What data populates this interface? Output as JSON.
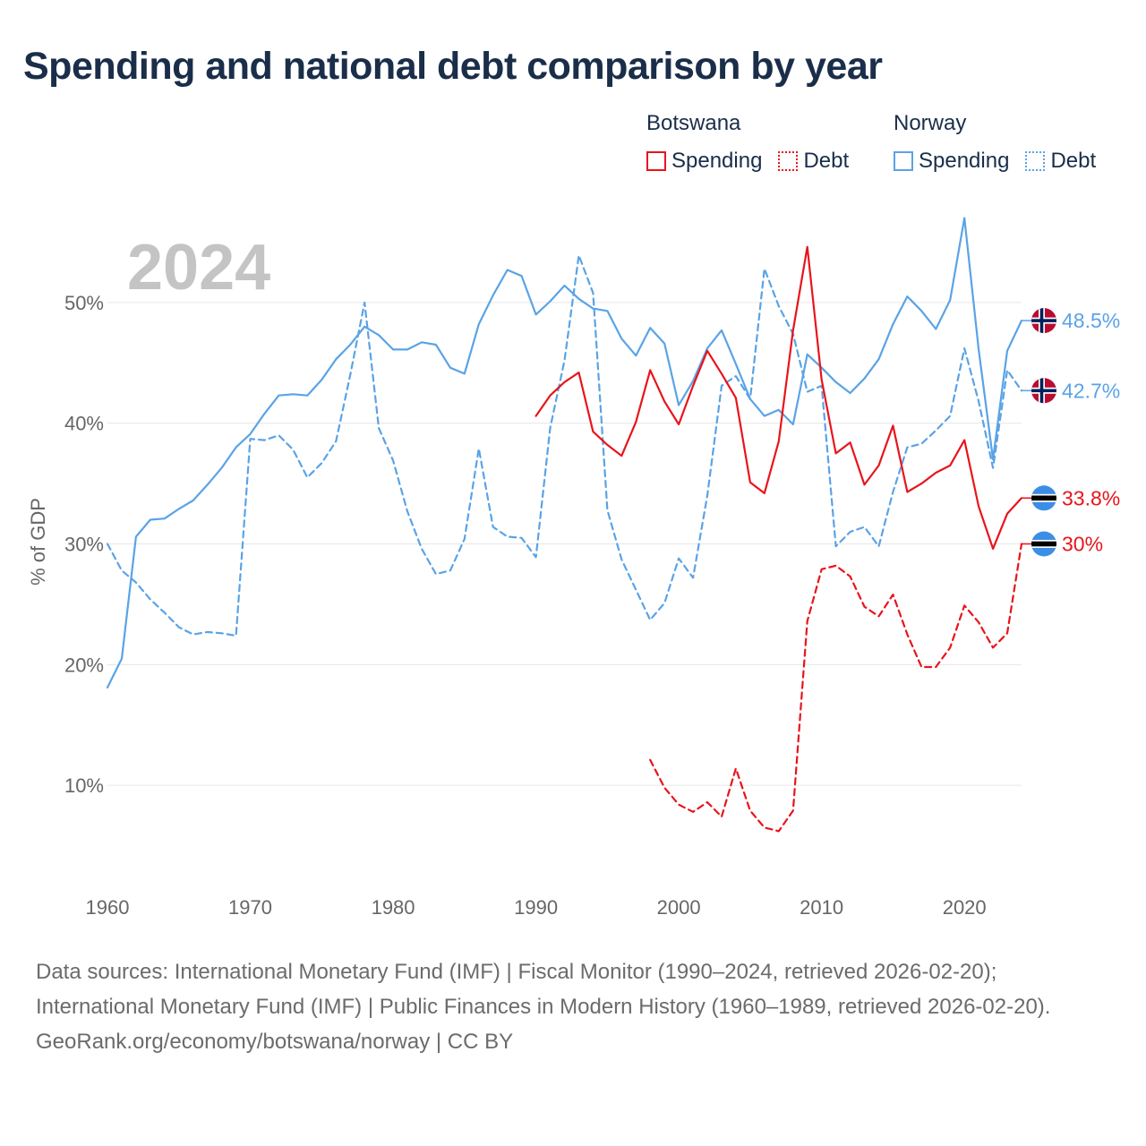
{
  "title": "Spending and national debt comparison by year",
  "legend": {
    "groups": [
      {
        "name": "Botswana",
        "items": [
          {
            "label": "Spending",
            "style": "solid",
            "color": "#e8141c"
          },
          {
            "label": "Debt",
            "style": "dotted",
            "color": "#e8141c"
          }
        ]
      },
      {
        "name": "Norway",
        "items": [
          {
            "label": "Spending",
            "style": "solid",
            "color": "#5aa3e6"
          },
          {
            "label": "Debt",
            "style": "dotted",
            "color": "#5aa3e6"
          }
        ]
      }
    ]
  },
  "colors": {
    "botswana": "#e8141c",
    "norway": "#5aa3e6",
    "grid": "#e6e6e6",
    "axis_text": "#666666",
    "year_label": "#c4c4c4"
  },
  "footer": {
    "sources": "Data sources: International Monetary Fund (IMF) | Fiscal Monitor (1990–2024, retrieved 2026-02-20); International Monetary Fund (IMF) | Public Finances in Modern History (1960–1989, retrieved 2026-02-20).",
    "credit": "GeoRank.org/economy/botswana/norway | CC BY"
  },
  "chart_data": {
    "type": "line",
    "year_label": "2024",
    "ylabel": "% of GDP",
    "xlim": [
      1960,
      2024
    ],
    "ylim": [
      2,
      58
    ],
    "xticks": [
      1960,
      1970,
      1980,
      1990,
      2000,
      2010,
      2020
    ],
    "xtick_labels": [
      "1960",
      "1970",
      "1980",
      "1990",
      "2000",
      "2010",
      "2020"
    ],
    "yticks": [
      10,
      20,
      30,
      40,
      50
    ],
    "ytick_labels": [
      "10%",
      "20%",
      "30%",
      "40%",
      "50%"
    ],
    "series": [
      {
        "name": "Norway Spending",
        "country": "Norway",
        "metric": "Spending",
        "style": "solid",
        "color": "#5aa3e6",
        "end_label": "48.5%",
        "flag": "norway",
        "x": [
          1960,
          1961,
          1962,
          1963,
          1964,
          1965,
          1966,
          1967,
          1968,
          1969,
          1970,
          1971,
          1972,
          1973,
          1974,
          1975,
          1976,
          1977,
          1978,
          1979,
          1980,
          1981,
          1982,
          1983,
          1984,
          1985,
          1986,
          1987,
          1988,
          1989,
          1990,
          1991,
          1992,
          1993,
          1994,
          1995,
          1996,
          1997,
          1998,
          1999,
          2000,
          2001,
          2002,
          2003,
          2004,
          2005,
          2006,
          2007,
          2008,
          2009,
          2010,
          2011,
          2012,
          2013,
          2014,
          2015,
          2016,
          2017,
          2018,
          2019,
          2020,
          2021,
          2022,
          2023,
          2024
        ],
        "y": [
          18.1,
          20.5,
          30.6,
          32.0,
          32.1,
          32.9,
          33.6,
          34.9,
          36.3,
          38.0,
          39.1,
          40.8,
          42.3,
          42.4,
          42.3,
          43.6,
          45.3,
          46.5,
          48.0,
          47.3,
          46.1,
          46.1,
          46.7,
          46.5,
          44.6,
          44.1,
          48.2,
          50.6,
          52.7,
          52.2,
          49.0,
          50.1,
          51.4,
          50.3,
          49.5,
          49.3,
          47.0,
          45.6,
          47.9,
          46.6,
          41.5,
          43.5,
          46.2,
          47.7,
          44.9,
          42.0,
          40.6,
          41.1,
          39.9,
          45.7,
          44.6,
          43.4,
          42.5,
          43.7,
          45.3,
          48.2,
          50.5,
          49.3,
          47.8,
          50.2,
          57.0,
          46.1,
          37.0,
          46.0,
          48.5
        ]
      },
      {
        "name": "Norway Debt",
        "country": "Norway",
        "metric": "Debt",
        "style": "dashed",
        "color": "#5aa3e6",
        "end_label": "42.7%",
        "flag": "norway",
        "x": [
          1960,
          1961,
          1962,
          1963,
          1964,
          1965,
          1966,
          1967,
          1968,
          1969,
          1970,
          1971,
          1972,
          1973,
          1974,
          1975,
          1976,
          1977,
          1978,
          1979,
          1980,
          1981,
          1982,
          1983,
          1984,
          1985,
          1986,
          1987,
          1988,
          1989,
          1990,
          1991,
          1992,
          1993,
          1994,
          1995,
          1996,
          1997,
          1998,
          1999,
          2000,
          2001,
          2002,
          2003,
          2004,
          2005,
          2006,
          2007,
          2008,
          2009,
          2010,
          2011,
          2012,
          2013,
          2014,
          2015,
          2016,
          2017,
          2018,
          2019,
          2020,
          2021,
          2022,
          2023,
          2024
        ],
        "y": [
          30.0,
          27.8,
          26.8,
          25.4,
          24.3,
          23.1,
          22.5,
          22.7,
          22.6,
          22.4,
          38.7,
          38.6,
          39.0,
          37.8,
          35.5,
          36.7,
          38.5,
          44.0,
          50.0,
          39.6,
          36.9,
          32.7,
          29.6,
          27.5,
          27.8,
          30.4,
          37.9,
          31.4,
          30.6,
          30.5,
          28.9,
          39.6,
          45.2,
          53.9,
          50.8,
          32.8,
          28.7,
          26.2,
          23.7,
          25.1,
          28.8,
          27.2,
          34.0,
          43.1,
          43.9,
          42.0,
          52.8,
          49.7,
          47.4,
          42.6,
          43.1,
          29.8,
          31.0,
          31.4,
          29.8,
          34.3,
          38.0,
          38.3,
          39.4,
          40.6,
          46.2,
          41.8,
          36.3,
          44.4,
          42.7
        ]
      },
      {
        "name": "Botswana Spending",
        "country": "Botswana",
        "metric": "Spending",
        "style": "solid",
        "color": "#e8141c",
        "end_label": "33.8%",
        "flag": "botswana",
        "x": [
          1990,
          1991,
          1992,
          1993,
          1994,
          1995,
          1996,
          1997,
          1998,
          1999,
          2000,
          2001,
          2002,
          2003,
          2004,
          2005,
          2006,
          2007,
          2008,
          2009,
          2010,
          2011,
          2012,
          2013,
          2014,
          2015,
          2016,
          2017,
          2018,
          2019,
          2020,
          2021,
          2022,
          2023,
          2024
        ],
        "y": [
          40.6,
          42.3,
          43.4,
          44.2,
          39.3,
          38.2,
          37.3,
          40.1,
          44.4,
          41.8,
          39.9,
          43.1,
          46.0,
          44.1,
          42.1,
          35.1,
          34.2,
          38.5,
          47.7,
          54.6,
          43.6,
          37.5,
          38.4,
          34.9,
          36.5,
          39.8,
          34.3,
          35.0,
          35.9,
          36.5,
          38.6,
          33.1,
          29.6,
          32.5,
          33.8
        ]
      },
      {
        "name": "Botswana Debt",
        "country": "Botswana",
        "metric": "Debt",
        "style": "dashed",
        "color": "#e8141c",
        "end_label": "30%",
        "flag": "botswana",
        "x": [
          1998,
          1999,
          2000,
          2001,
          2002,
          2003,
          2004,
          2005,
          2006,
          2007,
          2008,
          2009,
          2010,
          2011,
          2012,
          2013,
          2014,
          2015,
          2016,
          2017,
          2018,
          2019,
          2020,
          2021,
          2022,
          2023,
          2024
        ],
        "y": [
          12.1,
          9.8,
          8.4,
          7.8,
          8.6,
          7.4,
          11.4,
          7.9,
          6.5,
          6.2,
          7.9,
          23.6,
          27.9,
          28.2,
          27.3,
          24.8,
          24.0,
          25.8,
          22.5,
          19.8,
          19.8,
          21.4,
          24.9,
          23.5,
          21.4,
          22.6,
          30.0
        ]
      }
    ]
  }
}
